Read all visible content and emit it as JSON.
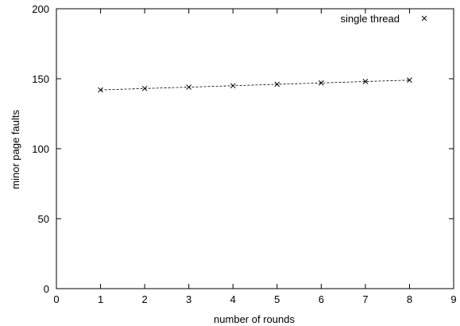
{
  "chart_data": {
    "type": "line",
    "title": "",
    "xlabel": "number of rounds",
    "ylabel": "minor page faults",
    "xlim": [
      0,
      9
    ],
    "ylim": [
      0,
      200
    ],
    "xticks": [
      0,
      1,
      2,
      3,
      4,
      5,
      6,
      7,
      8,
      9
    ],
    "yticks": [
      0,
      50,
      100,
      150,
      200
    ],
    "grid": false,
    "legend_position": "top-right",
    "series": [
      {
        "name": "single thread",
        "marker": "x",
        "line_style": "dashed",
        "color": "#000000",
        "x": [
          1,
          2,
          3,
          4,
          5,
          6,
          7,
          8
        ],
        "y": [
          142,
          143,
          144,
          145,
          146,
          147,
          148,
          149
        ]
      }
    ]
  }
}
